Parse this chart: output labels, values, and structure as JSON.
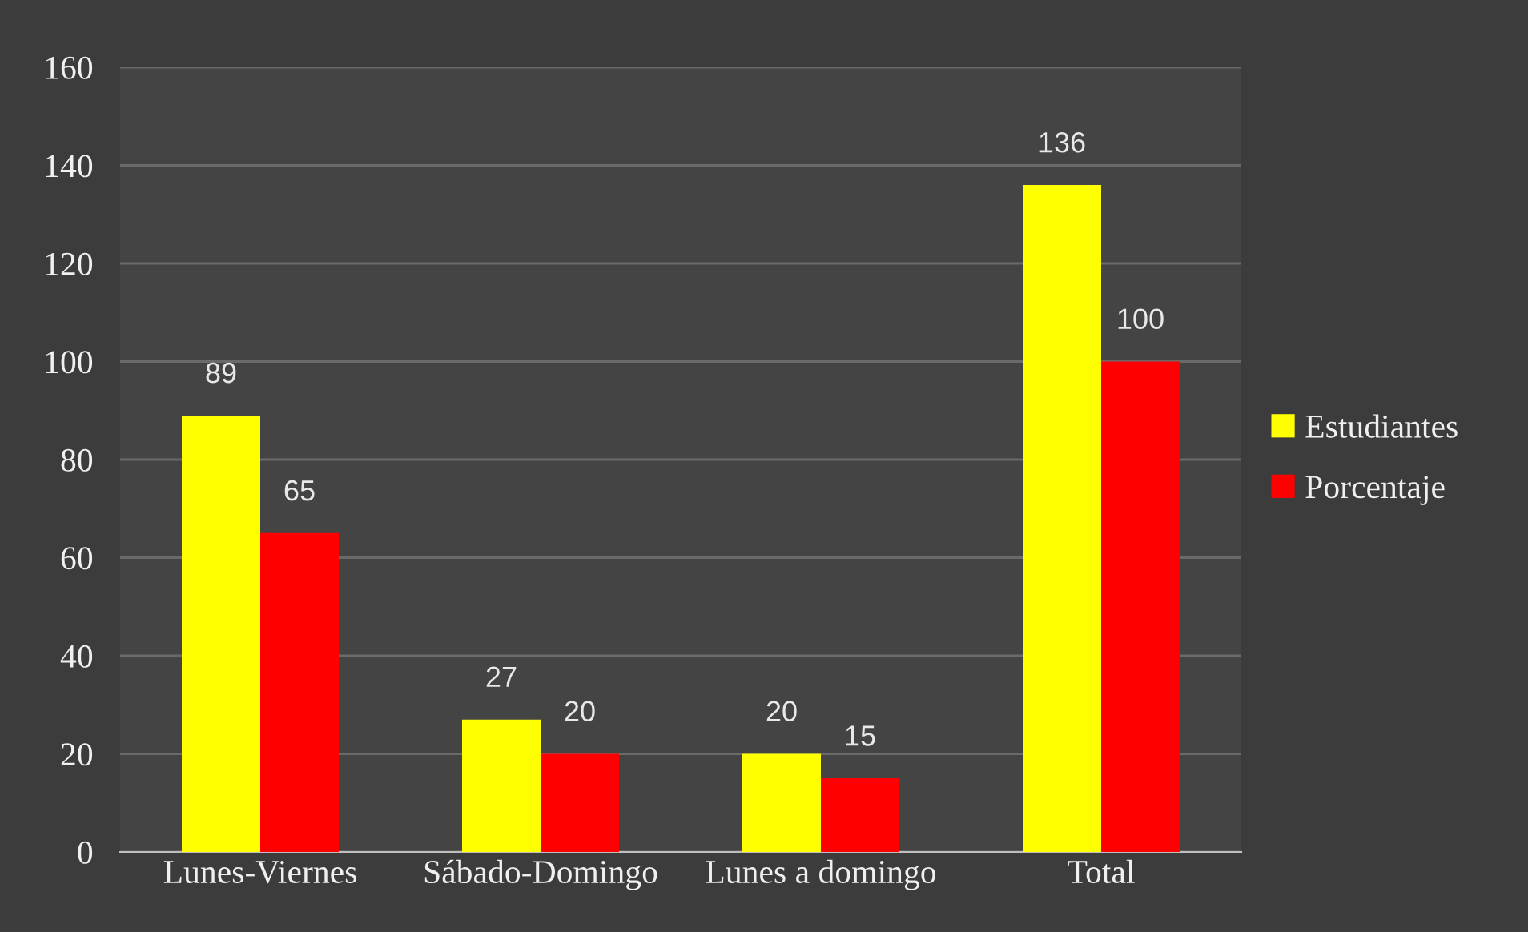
{
  "chart_data": {
    "type": "bar",
    "categories": [
      "Lunes-Viernes",
      "Sábado-Domingo",
      "Lunes a domingo",
      "Total"
    ],
    "series": [
      {
        "name": "Estudiantes",
        "color": "#ffff00",
        "values": [
          89,
          27,
          20,
          136
        ]
      },
      {
        "name": "Porcentaje",
        "color": "#ff0000",
        "values": [
          65,
          20,
          15,
          100
        ]
      }
    ],
    "ylim": [
      0,
      160
    ],
    "yticks": [
      0,
      20,
      40,
      60,
      80,
      100,
      120,
      140,
      160
    ],
    "grid": "y",
    "legend": "right",
    "data_labels": true
  }
}
